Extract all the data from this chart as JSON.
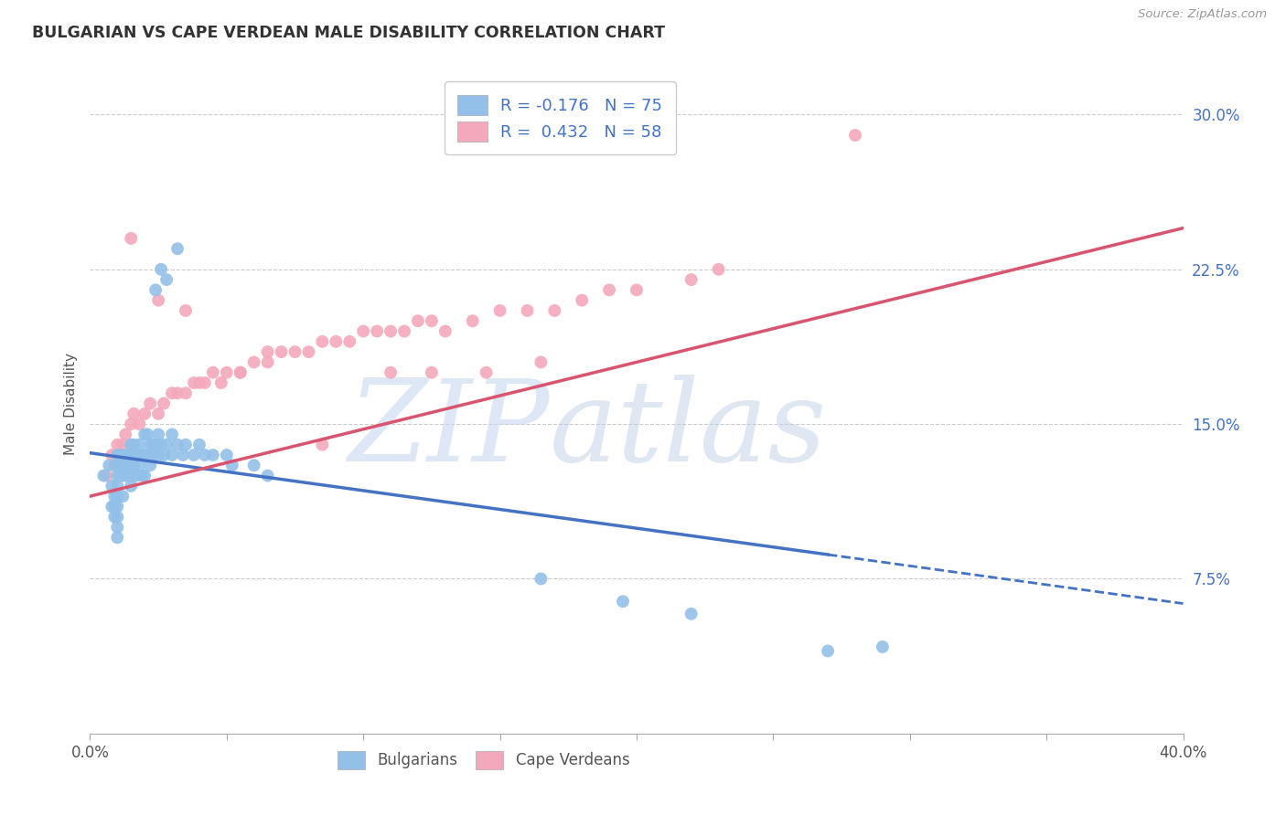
{
  "title": "BULGARIAN VS CAPE VERDEAN MALE DISABILITY CORRELATION CHART",
  "source": "Source: ZipAtlas.com",
  "ylabel": "Male Disability",
  "xlim": [
    0.0,
    0.4
  ],
  "ylim": [
    0.0,
    0.32
  ],
  "xticks": [
    0.0,
    0.05,
    0.1,
    0.15,
    0.2,
    0.25,
    0.3,
    0.35,
    0.4
  ],
  "xticklabels": [
    "0.0%",
    "",
    "",
    "",
    "",
    "",
    "",
    "",
    "40.0%"
  ],
  "yticks": [
    0.075,
    0.15,
    0.225,
    0.3
  ],
  "yticklabels": [
    "7.5%",
    "15.0%",
    "22.5%",
    "30.0%"
  ],
  "grid_yticks": [
    0.075,
    0.15,
    0.225,
    0.3
  ],
  "bg_color": "#ffffff",
  "bulgarian_color": "#92C0E8",
  "cape_verdean_color": "#F4A8BB",
  "trend_bulgarian_color": "#4472C4",
  "trend_cape_verdean_color": "#D9546E",
  "R_bulgarian": -0.176,
  "N_bulgarian": 75,
  "R_cape_verdean": 0.432,
  "N_cape_verdean": 58,
  "legend_labels_top": [
    "R = -0.176   N = 75",
    "R =  0.432   N = 58"
  ],
  "legend_labels_bottom": [
    "Bulgarians",
    "Cape Verdeans"
  ],
  "watermark_zip": "ZIP",
  "watermark_atlas": "atlas",
  "bg_trend_solid_end": 0.27,
  "bg_trend_start_y": 0.136,
  "bg_trend_end_y": 0.063,
  "cv_trend_start_y": 0.115,
  "cv_trend_end_y": 0.245,
  "bulgarian_x": [
    0.005,
    0.007,
    0.008,
    0.008,
    0.009,
    0.009,
    0.009,
    0.01,
    0.01,
    0.01,
    0.01,
    0.01,
    0.01,
    0.01,
    0.01,
    0.01,
    0.01,
    0.011,
    0.011,
    0.012,
    0.012,
    0.012,
    0.013,
    0.013,
    0.014,
    0.014,
    0.015,
    0.015,
    0.015,
    0.015,
    0.016,
    0.016,
    0.017,
    0.017,
    0.018,
    0.018,
    0.019,
    0.019,
    0.02,
    0.02,
    0.02,
    0.021,
    0.021,
    0.022,
    0.022,
    0.023,
    0.023,
    0.024,
    0.025,
    0.025,
    0.026,
    0.027,
    0.028,
    0.03,
    0.03,
    0.032,
    0.034,
    0.035,
    0.038,
    0.04,
    0.042,
    0.045,
    0.05,
    0.052,
    0.06,
    0.065,
    0.024,
    0.026,
    0.028,
    0.032,
    0.27,
    0.29,
    0.22,
    0.195,
    0.165
  ],
  "bulgarian_y": [
    0.125,
    0.13,
    0.12,
    0.11,
    0.115,
    0.11,
    0.105,
    0.135,
    0.13,
    0.13,
    0.125,
    0.12,
    0.115,
    0.11,
    0.105,
    0.1,
    0.095,
    0.135,
    0.125,
    0.13,
    0.125,
    0.115,
    0.135,
    0.125,
    0.135,
    0.13,
    0.14,
    0.135,
    0.125,
    0.12,
    0.14,
    0.13,
    0.135,
    0.125,
    0.14,
    0.13,
    0.135,
    0.125,
    0.145,
    0.135,
    0.125,
    0.145,
    0.135,
    0.14,
    0.13,
    0.14,
    0.135,
    0.14,
    0.145,
    0.135,
    0.14,
    0.135,
    0.14,
    0.145,
    0.135,
    0.14,
    0.135,
    0.14,
    0.135,
    0.14,
    0.135,
    0.135,
    0.135,
    0.13,
    0.13,
    0.125,
    0.215,
    0.225,
    0.22,
    0.235,
    0.04,
    0.042,
    0.058,
    0.064,
    0.075
  ],
  "cape_verdean_x": [
    0.006,
    0.008,
    0.009,
    0.01,
    0.012,
    0.013,
    0.015,
    0.016,
    0.018,
    0.02,
    0.022,
    0.025,
    0.027,
    0.03,
    0.032,
    0.035,
    0.038,
    0.04,
    0.042,
    0.045,
    0.048,
    0.05,
    0.055,
    0.06,
    0.065,
    0.07,
    0.075,
    0.08,
    0.085,
    0.09,
    0.095,
    0.1,
    0.105,
    0.11,
    0.115,
    0.12,
    0.125,
    0.13,
    0.14,
    0.15,
    0.16,
    0.17,
    0.18,
    0.19,
    0.2,
    0.22,
    0.23,
    0.28,
    0.015,
    0.025,
    0.035,
    0.055,
    0.065,
    0.085,
    0.11,
    0.125,
    0.145,
    0.165
  ],
  "cape_verdean_y": [
    0.125,
    0.135,
    0.13,
    0.14,
    0.14,
    0.145,
    0.15,
    0.155,
    0.15,
    0.155,
    0.16,
    0.155,
    0.16,
    0.165,
    0.165,
    0.165,
    0.17,
    0.17,
    0.17,
    0.175,
    0.17,
    0.175,
    0.175,
    0.18,
    0.18,
    0.185,
    0.185,
    0.185,
    0.19,
    0.19,
    0.19,
    0.195,
    0.195,
    0.195,
    0.195,
    0.2,
    0.2,
    0.195,
    0.2,
    0.205,
    0.205,
    0.205,
    0.21,
    0.215,
    0.215,
    0.22,
    0.225,
    0.29,
    0.24,
    0.21,
    0.205,
    0.175,
    0.185,
    0.14,
    0.175,
    0.175,
    0.175,
    0.18
  ]
}
